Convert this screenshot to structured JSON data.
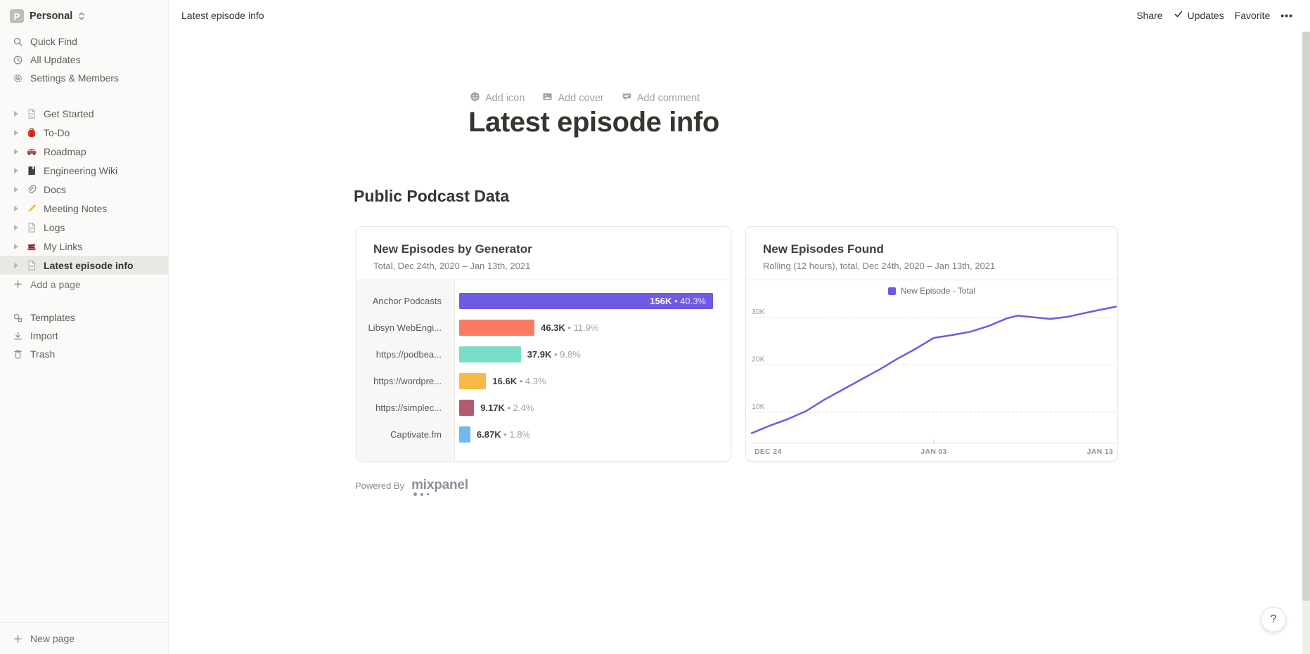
{
  "workspace": {
    "initial": "P",
    "name": "Personal"
  },
  "sidebar": {
    "top_items": [
      {
        "label": "Quick Find",
        "icon": "search-icon"
      },
      {
        "label": "All Updates",
        "icon": "clock-icon"
      },
      {
        "label": "Settings & Members",
        "icon": "gear-icon"
      }
    ],
    "pages": [
      {
        "label": "Get Started",
        "icon": "page-icon"
      },
      {
        "label": "To-Do",
        "icon": "backpack-icon"
      },
      {
        "label": "Roadmap",
        "icon": "car-icon"
      },
      {
        "label": "Engineering Wiki",
        "icon": "notebook-icon"
      },
      {
        "label": "Docs",
        "icon": "paperclip-icon"
      },
      {
        "label": "Meeting Notes",
        "icon": "pencil-icon"
      },
      {
        "label": "Logs",
        "icon": "page-icon"
      },
      {
        "label": "My Links",
        "icon": "books-icon"
      },
      {
        "label": "Latest episode info",
        "icon": "page-icon",
        "selected": true
      }
    ],
    "add_page_label": "Add a page",
    "bottom_items": [
      {
        "label": "Templates",
        "icon": "templates-icon"
      },
      {
        "label": "Import",
        "icon": "import-icon"
      },
      {
        "label": "Trash",
        "icon": "trash-icon"
      }
    ],
    "new_page_label": "New page"
  },
  "topbar": {
    "breadcrumb": "Latest episode info",
    "share": "Share",
    "updates": "Updates",
    "favorite": "Favorite",
    "more": "•••"
  },
  "page": {
    "add_icon": "Add icon",
    "add_cover": "Add cover",
    "add_comment": "Add comment",
    "title": "Latest episode info",
    "section_heading": "Public Podcast Data",
    "powered_by": "Powered By",
    "mixpanel_wordmark": "mixpanel",
    "help": "?"
  },
  "colors": {
    "accent_purple": "#6D5BE5",
    "coral": "#F97B61",
    "teal": "#79DEC9",
    "yellow": "#F7BA46",
    "mauve": "#B25C72",
    "sky_blue": "#72B8EC",
    "sidebar_bg": "#FBFAF8",
    "selected_row_bg": "#E9E8E4"
  },
  "chart_data": [
    {
      "type": "bar",
      "orientation": "horizontal",
      "title": "New Episodes by Generator",
      "subtitle": "Total, Dec 24th, 2020 – Jan 13th, 2021",
      "categories": [
        "Anchor Podcasts",
        "Libsyn WebEngi...",
        "https://podbea...",
        "https://wordpre...",
        "https://simplec...",
        "Captivate.fm"
      ],
      "values": [
        156000,
        46300,
        37900,
        16600,
        9170,
        6870
      ],
      "value_labels": [
        "156K",
        "46.3K",
        "37.9K",
        "16.6K",
        "9.17K",
        "6.87K"
      ],
      "percent_labels": [
        "40.3%",
        "11.9%",
        "9.8%",
        "4.3%",
        "2.4%",
        "1.8%"
      ],
      "value_separator": "•",
      "bar_colors": [
        "#6D5BE5",
        "#F97B61",
        "#79DEC9",
        "#F7BA46",
        "#B25C72",
        "#72B8EC"
      ],
      "xlim": [
        0,
        156000
      ],
      "grid": "off"
    },
    {
      "type": "line",
      "title": "New Episodes Found",
      "subtitle": "Rolling (12 hours), total, Dec 24th, 2020 – Jan 13th, 2021",
      "legend": [
        {
          "label": "New Episode - Total",
          "color": "#6D5BE5"
        }
      ],
      "legend_position": "top-center",
      "x_range": [
        "Dec 24, 2020",
        "Jan 13, 2021"
      ],
      "x_tick_labels": [
        "DEC 24",
        "JAN 03",
        "JAN 13"
      ],
      "y_tick_labels": [
        "10K",
        "20K",
        "30K"
      ],
      "y_ticks_k": [
        10,
        20,
        30
      ],
      "ylim_k": [
        3.5,
        33
      ],
      "grid": "dashed-horizontal",
      "series": [
        {
          "name": "New Episode - Total",
          "x_frac": [
            0,
            0.05,
            0.1,
            0.15,
            0.2,
            0.25,
            0.3,
            0.35,
            0.4,
            0.45,
            0.5,
            0.55,
            0.6,
            0.65,
            0.7,
            0.73,
            0.78,
            0.82,
            0.87,
            0.93,
            1
          ],
          "values_k": [
            5.6,
            7.2,
            8.6,
            10.3,
            12.7,
            14.8,
            16.9,
            19,
            21.3,
            23.4,
            25.7,
            26.3,
            27,
            28.2,
            29.8,
            30.4,
            30,
            29.7,
            30.2,
            31.2,
            32.3
          ]
        }
      ]
    }
  ]
}
